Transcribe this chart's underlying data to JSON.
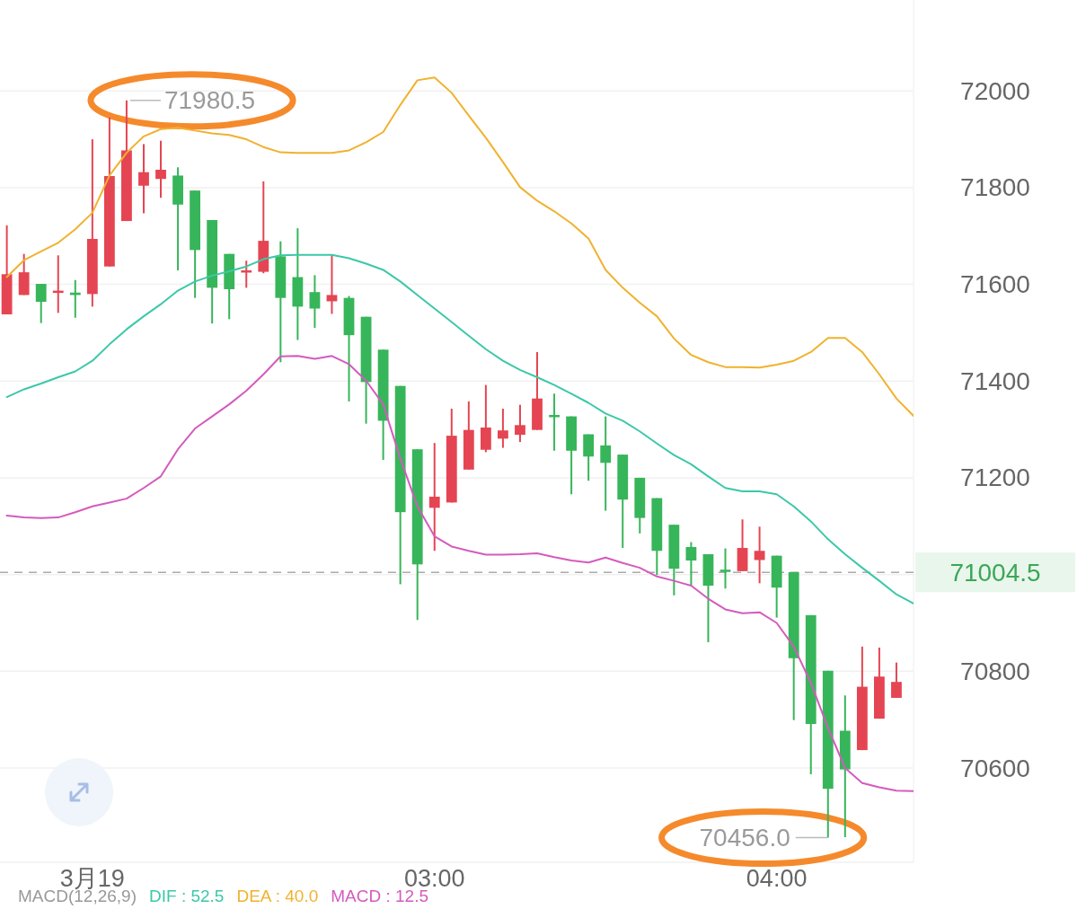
{
  "chart_data": {
    "type": "candlestick",
    "x": [
      1.75,
      1.8,
      1.85,
      1.9,
      1.95,
      2.0,
      2.05,
      2.1,
      2.15,
      2.2,
      2.25,
      2.3,
      2.35,
      2.4,
      2.45,
      2.5,
      2.55,
      2.6,
      2.65,
      2.7,
      2.75,
      2.8,
      2.85,
      2.9,
      2.95,
      3.0,
      3.05,
      3.1,
      3.15,
      3.2,
      3.25,
      3.3,
      3.35,
      3.4,
      3.45,
      3.5,
      3.55,
      3.6,
      3.65,
      3.7,
      3.75,
      3.8,
      3.85,
      3.9,
      3.95,
      4.0,
      4.05,
      4.1,
      4.15,
      4.2,
      4.25,
      4.3,
      4.35
    ],
    "ohlc": [
      [
        71538,
        71722,
        71538,
        71621
      ],
      [
        71578,
        71663,
        71578,
        71625
      ],
      [
        71601,
        71601,
        71520,
        71564
      ],
      [
        71583,
        71660,
        71541,
        71587
      ],
      [
        71583,
        71609,
        71531,
        71578
      ],
      [
        71580,
        71900,
        71554,
        71694
      ],
      [
        71637,
        71945,
        71637,
        71824
      ],
      [
        71731,
        71980.5,
        71731,
        71877
      ],
      [
        71804,
        71890,
        71747,
        71832
      ],
      [
        71818,
        71897,
        71779,
        71837
      ],
      [
        71825,
        71842,
        71629,
        71765
      ],
      [
        71794,
        71794,
        71572,
        71671
      ],
      [
        71733,
        71733,
        71519,
        71593
      ],
      [
        71663,
        71663,
        71528,
        71590
      ],
      [
        71625,
        71649,
        71593,
        71629
      ],
      [
        71626,
        71813,
        71623,
        71690
      ],
      [
        71658,
        71689,
        71439,
        71572
      ],
      [
        71615,
        71716,
        71485,
        71554
      ],
      [
        71584,
        71619,
        71510,
        71550
      ],
      [
        71565,
        71661,
        71539,
        71578
      ],
      [
        71572,
        71576,
        71358,
        71495
      ],
      [
        71533,
        71533,
        71312,
        71398
      ],
      [
        71465,
        71465,
        71237,
        71318
      ],
      [
        71390,
        71390,
        70980,
        71129
      ],
      [
        71259,
        71259,
        70906,
        71021
      ],
      [
        71138,
        71272,
        71049,
        71161
      ],
      [
        71149,
        71343,
        71149,
        71287
      ],
      [
        71217,
        71358,
        71217,
        71299
      ],
      [
        71258,
        71392,
        71253,
        71304
      ],
      [
        71281,
        71343,
        71262,
        71298
      ],
      [
        71289,
        71351,
        71274,
        71309
      ],
      [
        71299,
        71460,
        71299,
        71364
      ],
      [
        71330,
        71374,
        71256,
        71326
      ],
      [
        71327,
        71327,
        71166,
        71256
      ],
      [
        71290,
        71290,
        71194,
        71244
      ],
      [
        71267,
        71327,
        71132,
        71231
      ],
      [
        71248,
        71248,
        71055,
        71155
      ],
      [
        71200,
        71200,
        71085,
        71117
      ],
      [
        71158,
        71158,
        70999,
        71049
      ],
      [
        71103,
        71103,
        70957,
        71012
      ],
      [
        71057,
        71067,
        70977,
        71029
      ],
      [
        71042,
        71042,
        70860,
        70977
      ],
      [
        71010,
        71054,
        70971,
        71006
      ],
      [
        71007,
        71114,
        71007,
        71055
      ],
      [
        71030,
        71099,
        70982,
        71049
      ],
      [
        71039,
        71039,
        70911,
        70973
      ],
      [
        71005,
        71005,
        70699,
        70827
      ],
      [
        70916,
        70916,
        70587,
        70691
      ],
      [
        70801,
        70801,
        70456,
        70557
      ],
      [
        70677,
        70750,
        70457,
        70597
      ],
      [
        70637,
        70851,
        70637,
        70768
      ],
      [
        70702,
        70849,
        70702,
        70789
      ],
      [
        70745,
        70818,
        70745,
        70778
      ]
    ],
    "colors": [
      "#e54552",
      "#e54552",
      "#37b55a",
      "#e54552",
      "#37b55a",
      "#e54552",
      "#e54552",
      "#e54552",
      "#e54552",
      "#e54552",
      "#37b55a",
      "#37b55a",
      "#37b55a",
      "#37b55a",
      "#e54552",
      "#e54552",
      "#37b55a",
      "#37b55a",
      "#37b55a",
      "#e54552",
      "#37b55a",
      "#37b55a",
      "#37b55a",
      "#37b55a",
      "#37b55a",
      "#e54552",
      "#e54552",
      "#e54552",
      "#e54552",
      "#e54552",
      "#e54552",
      "#e54552",
      "#37b55a",
      "#37b55a",
      "#37b55a",
      "#37b55a",
      "#37b55a",
      "#37b55a",
      "#37b55a",
      "#37b55a",
      "#37b55a",
      "#37b55a",
      "#37b55a",
      "#e54552",
      "#e54552",
      "#37b55a",
      "#37b55a",
      "#37b55a",
      "#37b55a",
      "#37b55a",
      "#e54552",
      "#e54552",
      "#e54552"
    ],
    "series": [
      {
        "type": "line",
        "color": "#f0b22e",
        "x": [
          1.75,
          1.8,
          1.85,
          1.9,
          1.95,
          2.0,
          2.05,
          2.1,
          2.15,
          2.2,
          2.25,
          2.3,
          2.35,
          2.4,
          2.45,
          2.5,
          2.55,
          2.6,
          2.65,
          2.7,
          2.75,
          2.8,
          2.85,
          2.9,
          2.95,
          3.0,
          3.05,
          3.1,
          3.15,
          3.2,
          3.25,
          3.3,
          3.35,
          3.4,
          3.45,
          3.5,
          3.55,
          3.6,
          3.65,
          3.7,
          3.75,
          3.8,
          3.85,
          3.9,
          3.95,
          4.0,
          4.05,
          4.1,
          4.15,
          4.2,
          4.25,
          4.3,
          4.35,
          4.4
        ],
        "values": [
          71615,
          71650,
          71668,
          71686,
          71714,
          71748,
          71825,
          71872,
          71906,
          71921,
          71924,
          71918,
          71912,
          71909,
          71900,
          71884,
          71873,
          71872,
          71872,
          71872,
          71877,
          71894,
          71915,
          71971,
          72022,
          72028,
          71996,
          71949,
          71903,
          71853,
          71801,
          71773,
          71751,
          71726,
          71695,
          71630,
          71593,
          71562,
          71534,
          71488,
          71454,
          71439,
          71429,
          71429,
          71428,
          71434,
          71442,
          71460,
          71489,
          71489,
          71460,
          71414,
          71364,
          71328
        ]
      },
      {
        "type": "line",
        "color": "#3cc8a8",
        "x": [
          1.75,
          1.8,
          1.85,
          1.9,
          1.95,
          2.0,
          2.05,
          2.1,
          2.15,
          2.2,
          2.25,
          2.3,
          2.35,
          2.4,
          2.45,
          2.5,
          2.55,
          2.6,
          2.65,
          2.7,
          2.75,
          2.8,
          2.85,
          2.9,
          2.95,
          3.0,
          3.05,
          3.1,
          3.15,
          3.2,
          3.25,
          3.3,
          3.35,
          3.4,
          3.45,
          3.5,
          3.55,
          3.6,
          3.65,
          3.7,
          3.75,
          3.8,
          3.85,
          3.9,
          3.95,
          4.0,
          4.05,
          4.1,
          4.15,
          4.2,
          4.25,
          4.3,
          4.35,
          4.4
        ],
        "values": [
          71367,
          71383,
          71395,
          71408,
          71420,
          71442,
          71476,
          71507,
          71534,
          71559,
          71587,
          71606,
          71618,
          71627,
          71637,
          71652,
          71660,
          71661,
          71661,
          71661,
          71654,
          71643,
          71630,
          71606,
          71578,
          71550,
          71522,
          71494,
          71466,
          71442,
          71423,
          71408,
          71392,
          71374,
          71355,
          71333,
          71318,
          71296,
          71271,
          71247,
          71228,
          71203,
          71179,
          71172,
          71172,
          71166,
          71141,
          71110,
          71073,
          71042,
          71014,
          70987,
          70959,
          70940
        ]
      },
      {
        "type": "line",
        "color": "#d45bbd",
        "x": [
          1.75,
          1.8,
          1.85,
          1.9,
          1.95,
          2.0,
          2.05,
          2.1,
          2.15,
          2.2,
          2.25,
          2.3,
          2.35,
          2.4,
          2.45,
          2.5,
          2.55,
          2.6,
          2.65,
          2.7,
          2.75,
          2.8,
          2.85,
          2.9,
          2.95,
          3.0,
          3.05,
          3.1,
          3.15,
          3.2,
          3.25,
          3.3,
          3.35,
          3.4,
          3.45,
          3.5,
          3.55,
          3.6,
          3.65,
          3.7,
          3.75,
          3.8,
          3.85,
          3.9,
          3.95,
          4.0,
          4.05,
          4.1,
          4.15,
          4.2,
          4.25,
          4.3,
          4.35,
          4.4
        ],
        "values": [
          71122,
          71118,
          71117,
          71118,
          71129,
          71141,
          71149,
          71157,
          71179,
          71203,
          71259,
          71302,
          71327,
          71352,
          71380,
          71414,
          71451,
          71452,
          71446,
          71452,
          71435,
          71401,
          71352,
          71240,
          71141,
          71079,
          71058,
          71049,
          71041,
          71041,
          71042,
          71044,
          71036,
          71029,
          71025,
          71035,
          71024,
          71014,
          70996,
          70987,
          70977,
          70950,
          70928,
          70920,
          70922,
          70900,
          70851,
          70776,
          70683,
          70600,
          70569,
          70560,
          70553,
          70552
        ]
      }
    ],
    "xlim": [
      1.73,
      4.4
    ],
    "xticks": [
      {
        "value": 2,
        "label": "3月19"
      },
      {
        "value": 3,
        "label": "03:00"
      },
      {
        "value": 4,
        "label": "04:00"
      }
    ],
    "ylim": [
      70405,
      72188
    ],
    "yticks": [
      70600,
      70800,
      {
        "value": 71000,
        "label": null
      },
      71200,
      71400,
      71600,
      71800,
      72000
    ],
    "ref_lines": [
      {
        "axis": "y",
        "value": 71004.5,
        "label": "71004.5",
        "color": "#aaaaaa",
        "line_style": "dashed"
      }
    ],
    "annotations": [
      {
        "text": "71980.5",
        "x": 2.1,
        "y": 71980.5
      },
      {
        "text": "70456.0",
        "x": 4.15,
        "y": 70456
      },
      "MACD(12,26,9)",
      "DIF : 52.5",
      "DEA : 40.0",
      "MACD : 12.5"
    ],
    "grid": "y"
  }
}
